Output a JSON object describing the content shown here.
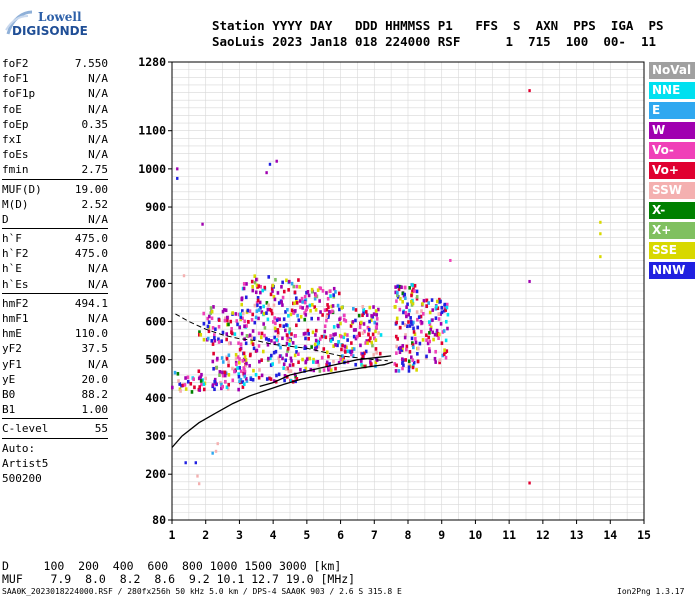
{
  "logo": {
    "line1": "Lowell",
    "line2": "DIGISONDE"
  },
  "header": {
    "line1": "Station YYYY DAY   DDD HHMMSS P1   FFS  S  AXN  PPS  IGA  PS",
    "line2": "SaoLuis 2023 Jan18 018 224000 RSF      1  715  100  00-  11"
  },
  "params": {
    "group1": [
      {
        "key": "foF2",
        "value": "7.550"
      },
      {
        "key": "foF1",
        "value": "N/A"
      },
      {
        "key": "foF1p",
        "value": "N/A"
      },
      {
        "key": "foE",
        "value": "N/A"
      },
      {
        "key": "foEp",
        "value": "0.35"
      },
      {
        "key": "fxI",
        "value": "N/A"
      },
      {
        "key": "foEs",
        "value": "N/A"
      },
      {
        "key": "fmin",
        "value": "2.75"
      }
    ],
    "group2": [
      {
        "key": "MUF(D)",
        "value": "19.00"
      },
      {
        "key": "M(D)",
        "value": "2.52"
      },
      {
        "key": "D",
        "value": "N/A"
      }
    ],
    "group3": [
      {
        "key": "h`F",
        "value": "475.0"
      },
      {
        "key": "h`F2",
        "value": "475.0"
      },
      {
        "key": "h`E",
        "value": "N/A"
      },
      {
        "key": "h`Es",
        "value": "N/A"
      }
    ],
    "group4": [
      {
        "key": "hmF2",
        "value": "494.1"
      },
      {
        "key": "hmF1",
        "value": "N/A"
      },
      {
        "key": "hmE",
        "value": "110.0"
      },
      {
        "key": "yF2",
        "value": "37.5"
      },
      {
        "key": "yF1",
        "value": "N/A"
      },
      {
        "key": "yE",
        "value": "20.0"
      },
      {
        "key": "B0",
        "value": "88.2"
      },
      {
        "key": "B1",
        "value": "1.00"
      }
    ],
    "clevel": {
      "key": "C-level",
      "value": "55"
    },
    "auto": [
      "Auto:",
      "Artist5",
      "500200"
    ]
  },
  "legend": [
    {
      "label": "NoVal",
      "color": "#a0a0a0"
    },
    {
      "label": "NNE",
      "color": "#00e0f0"
    },
    {
      "label": "E",
      "color": "#2fa8f0"
    },
    {
      "label": "W",
      "color": "#a000b0"
    },
    {
      "label": "Vo-",
      "color": "#f040b8"
    },
    {
      "label": "Vo+",
      "color": "#e00030"
    },
    {
      "label": "SSW",
      "color": "#f4b0b0"
    },
    {
      "label": "X-",
      "color": "#008000"
    },
    {
      "label": "X+",
      "color": "#80c060"
    },
    {
      "label": "SSE",
      "color": "#d8d800"
    },
    {
      "label": "NNW",
      "color": "#2020e0"
    }
  ],
  "muf_table": {
    "line1": "D     100  200  400  600  800 1000 1500 3000 [km]",
    "line2": "MUF    7.9  8.0  8.2  8.6  9.2 10.1 12.7 19.0 [MHz]"
  },
  "footer": "SAA0K_2023018224000.RSF / 280fx256h 50 kHz 5.0 km / DPS-4 SAA0K 903 / 2.6 S 315.8 E",
  "version": "Ion2Png 1.3.17",
  "chart_data": {
    "type": "scatter",
    "xlabel": "",
    "ylabel": "",
    "xlim": [
      1,
      15
    ],
    "ylim": [
      80,
      1280
    ],
    "xticks": [
      1,
      2,
      3,
      4,
      5,
      6,
      7,
      8,
      9,
      10,
      11,
      12,
      13,
      14,
      15
    ],
    "yticks": [
      80,
      200,
      300,
      400,
      500,
      600,
      700,
      800,
      900,
      1000,
      1100,
      1280
    ],
    "grid": true,
    "series": [
      {
        "color": "#000000",
        "type": "line",
        "x": [
          1.0,
          1.3,
          1.8,
          2.3,
          2.8,
          3.3,
          3.8,
          4.3,
          4.8,
          5.3,
          5.8,
          6.3,
          6.8,
          7.3,
          7.55
        ],
        "y": [
          270,
          300,
          335,
          360,
          385,
          405,
          420,
          435,
          448,
          458,
          466,
          474,
          481,
          487,
          494
        ]
      },
      {
        "color": "#000000",
        "type": "line",
        "x": [
          1.1,
          1.5,
          2.0,
          2.5,
          3.0,
          3.5,
          4.0,
          4.5,
          5.0,
          5.5,
          6.0,
          6.5,
          7.0,
          7.4
        ],
        "y": [
          620,
          600,
          580,
          565,
          555,
          550,
          540,
          535,
          530,
          520,
          510,
          505,
          500,
          497
        ]
      },
      {
        "color": "#000000",
        "type": "line",
        "x": [
          3.6,
          4.0,
          4.5,
          5.0,
          5.5,
          6.0,
          6.5,
          7.0,
          7.5
        ],
        "y": [
          430,
          440,
          460,
          470,
          480,
          490,
          500,
          505,
          510
        ]
      }
    ],
    "echo_clusters": [
      {
        "x_range": [
          1.0,
          2.0
        ],
        "y_range": [
          410,
          470
        ],
        "density": 35
      },
      {
        "x_range": [
          1.8,
          3.0
        ],
        "y_range": [
          540,
          640
        ],
        "density": 60
      },
      {
        "x_range": [
          2.2,
          3.2
        ],
        "y_range": [
          420,
          520
        ],
        "density": 70
      },
      {
        "x_range": [
          3.0,
          4.8
        ],
        "y_range": [
          440,
          720
        ],
        "density": 260
      },
      {
        "x_range": [
          4.8,
          6.0
        ],
        "y_range": [
          470,
          690
        ],
        "density": 150
      },
      {
        "x_range": [
          6.0,
          7.2
        ],
        "y_range": [
          480,
          640
        ],
        "density": 120
      },
      {
        "x_range": [
          7.6,
          8.3
        ],
        "y_range": [
          470,
          700
        ],
        "density": 120
      },
      {
        "x_range": [
          8.3,
          9.2
        ],
        "y_range": [
          490,
          660
        ],
        "density": 90
      }
    ],
    "isolated_points": [
      {
        "x": 1.15,
        "y": 1000,
        "color": "#a000b0"
      },
      {
        "x": 1.15,
        "y": 975,
        "color": "#2020e0"
      },
      {
        "x": 1.9,
        "y": 855,
        "color": "#a000b0"
      },
      {
        "x": 3.8,
        "y": 990,
        "color": "#a000b0"
      },
      {
        "x": 3.9,
        "y": 1012,
        "color": "#2020e0"
      },
      {
        "x": 4.1,
        "y": 1020,
        "color": "#a000b0"
      },
      {
        "x": 11.6,
        "y": 1205,
        "color": "#e00030"
      },
      {
        "x": 11.6,
        "y": 705,
        "color": "#a000b0"
      },
      {
        "x": 11.6,
        "y": 177,
        "color": "#e00030"
      },
      {
        "x": 13.7,
        "y": 860,
        "color": "#d8d800"
      },
      {
        "x": 13.7,
        "y": 830,
        "color": "#d8d800"
      },
      {
        "x": 13.7,
        "y": 770,
        "color": "#d8d800"
      },
      {
        "x": 1.4,
        "y": 230,
        "color": "#2020e0"
      },
      {
        "x": 1.7,
        "y": 230,
        "color": "#2020e0"
      },
      {
        "x": 2.2,
        "y": 255,
        "color": "#2fa8f0"
      },
      {
        "x": 2.3,
        "y": 260,
        "color": "#f4b0b0"
      },
      {
        "x": 2.35,
        "y": 280,
        "color": "#f4b0b0"
      },
      {
        "x": 1.75,
        "y": 195,
        "color": "#f4b0b0"
      },
      {
        "x": 1.8,
        "y": 175,
        "color": "#f4b0b0"
      },
      {
        "x": 1.35,
        "y": 720,
        "color": "#f4b0b0"
      },
      {
        "x": 9.25,
        "y": 760,
        "color": "#f040b8"
      }
    ]
  }
}
